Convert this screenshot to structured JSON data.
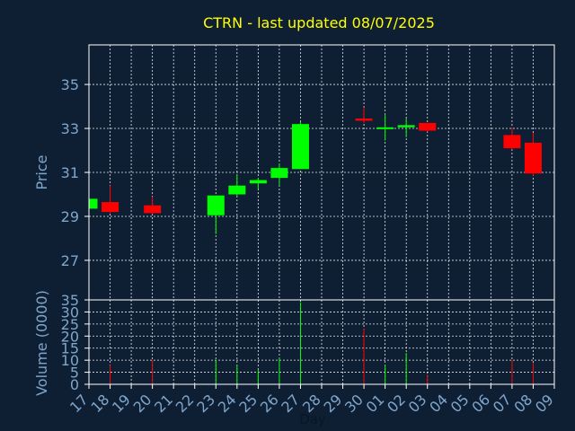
{
  "chart_data": {
    "type": "candlestick",
    "title": "CTRN - last updated 08/07/2025",
    "xlabel": "Day",
    "price_panel": {
      "ylabel": "Price",
      "ylim": [
        25.2,
        36.8
      ],
      "yticks": [
        27,
        29,
        31,
        33,
        35
      ]
    },
    "volume_panel": {
      "ylabel": "Volume (0000)",
      "ylim": [
        0,
        35
      ],
      "yticks": [
        0,
        5,
        10,
        15,
        20,
        25,
        30,
        35
      ]
    },
    "x_tick_labels": [
      "17",
      "18",
      "19",
      "20",
      "21",
      "22",
      "23",
      "24",
      "25",
      "26",
      "27",
      "28",
      "29",
      "30",
      "01",
      "02",
      "03",
      "04",
      "05",
      "06",
      "07",
      "08",
      "09"
    ],
    "colors": {
      "up": "#00ff00",
      "down": "#ff0000",
      "title": "#ffff00",
      "axis": "#7ea6cc",
      "background": "#0f1f33"
    },
    "candles": [
      {
        "day": "17",
        "open": 29.35,
        "high": 29.8,
        "low": 29.35,
        "close": 29.8,
        "volume": 0
      },
      {
        "day": "18",
        "open": 29.65,
        "high": 30.4,
        "low": 29.15,
        "close": 29.2,
        "volume": 8
      },
      {
        "day": "20",
        "open": 29.5,
        "high": 29.9,
        "low": 29.1,
        "close": 29.15,
        "volume": 10
      },
      {
        "day": "23",
        "open": 29.05,
        "high": 29.95,
        "low": 28.2,
        "close": 29.95,
        "volume": 10
      },
      {
        "day": "24",
        "open": 30.0,
        "high": 30.9,
        "low": 29.9,
        "close": 30.4,
        "volume": 8
      },
      {
        "day": "25",
        "open": 30.5,
        "high": 30.75,
        "low": 30.25,
        "close": 30.65,
        "volume": 6
      },
      {
        "day": "26",
        "open": 30.75,
        "high": 31.4,
        "low": 30.4,
        "close": 31.2,
        "volume": 11
      },
      {
        "day": "27",
        "open": 31.15,
        "high": 33.3,
        "low": 31.15,
        "close": 33.2,
        "volume": 34
      },
      {
        "day": "30",
        "open": 33.45,
        "high": 33.95,
        "low": 33.25,
        "close": 33.35,
        "volume": 23
      },
      {
        "day": "01",
        "open": 33.0,
        "high": 33.65,
        "low": 32.45,
        "close": 33.05,
        "volume": 8
      },
      {
        "day": "02",
        "open": 33.05,
        "high": 33.45,
        "low": 32.6,
        "close": 33.15,
        "volume": 13
      },
      {
        "day": "03",
        "open": 33.25,
        "high": 33.25,
        "low": 32.85,
        "close": 32.9,
        "volume": 4
      },
      {
        "day": "07",
        "open": 32.7,
        "high": 33.05,
        "low": 32.05,
        "close": 32.1,
        "volume": 10
      },
      {
        "day": "08",
        "open": 32.35,
        "high": 32.8,
        "low": 30.85,
        "close": 30.95,
        "volume": 9
      }
    ]
  }
}
